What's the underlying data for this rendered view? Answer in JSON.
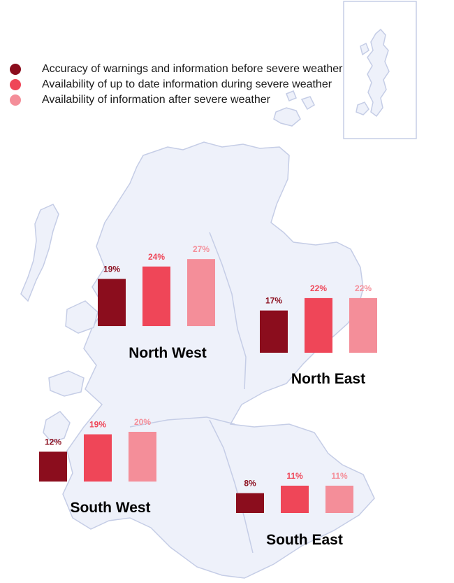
{
  "chart_data": {
    "type": "bar",
    "categories": [
      "Accuracy of warnings  and information before severe weather",
      "Availability of up  to date information during  severe weather",
      "Availability of information after severe weather"
    ],
    "colors": [
      "#8b0d1d",
      "#ef4658",
      "#f48e99"
    ],
    "regions": [
      {
        "name": "North West",
        "values": [
          19,
          24,
          27
        ],
        "labels": [
          "19%",
          "24%",
          "27%"
        ]
      },
      {
        "name": "North East",
        "values": [
          17,
          22,
          22
        ],
        "labels": [
          "17%",
          "22%",
          "22%"
        ]
      },
      {
        "name": "South West",
        "values": [
          12,
          19,
          20
        ],
        "labels": [
          "12%",
          "19%",
          "20%"
        ]
      },
      {
        "name": "South East",
        "values": [
          8,
          11,
          11
        ],
        "labels": [
          "8%",
          "11%",
          "11%"
        ]
      }
    ]
  },
  "legend": {
    "items": [
      {
        "label": "Accuracy of warnings  and information before severe weather",
        "color": "#8b0d1d"
      },
      {
        "label": "Availability of up  to date information during  severe weather",
        "color": "#ef4658"
      },
      {
        "label": "Availability of information after severe weather",
        "color": "#f48e99"
      }
    ]
  },
  "map": {
    "fill": "#eef1fa",
    "stroke": "#c5cde6"
  }
}
